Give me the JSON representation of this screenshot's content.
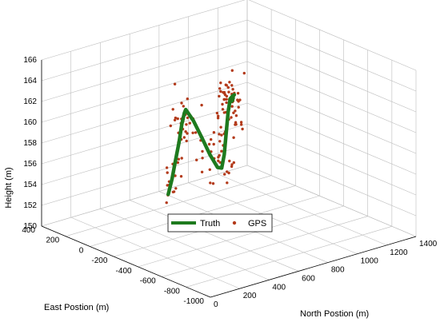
{
  "chart_data": {
    "type": "line3d",
    "title": "",
    "xlabel": "East Postion  (m)",
    "ylabel": "North Postion  (m)",
    "zlabel": "Height (m)",
    "xlim": [
      -1000,
      400
    ],
    "ylim": [
      0,
      1400
    ],
    "zlim": [
      150,
      166
    ],
    "xticks": [
      400,
      200,
      0,
      -200,
      -400,
      -600,
      -800,
      -1000
    ],
    "yticks": [
      0,
      200,
      400,
      600,
      800,
      1000,
      1200,
      1400
    ],
    "zticks": [
      150,
      152,
      154,
      156,
      158,
      160,
      162,
      164,
      166
    ],
    "grid": true,
    "legend": {
      "placement": "bottom-center",
      "entries": [
        "Truth",
        "GPS"
      ]
    },
    "series": [
      {
        "name": "Truth",
        "color": "#1e7a1e",
        "style": "thick-line",
        "points": [
          [
            -650,
            0,
            158.2
          ],
          [
            -560,
            100,
            158.8
          ],
          [
            -460,
            205,
            159.6
          ],
          [
            -350,
            320,
            160.4
          ],
          [
            -240,
            430,
            161.2
          ],
          [
            -175,
            500,
            161.6
          ],
          [
            -150,
            530,
            161.7
          ],
          [
            -170,
            565,
            160.6
          ],
          [
            -200,
            600,
            158.9
          ],
          [
            -230,
            630,
            157.3
          ],
          [
            -255,
            660,
            156.1
          ],
          [
            -265,
            680,
            156.0
          ],
          [
            -262,
            700,
            157.2
          ],
          [
            -255,
            720,
            159.3
          ],
          [
            -245,
            740,
            161.0
          ],
          [
            -238,
            760,
            162.2
          ],
          [
            -236,
            780,
            162.4
          ],
          [
            -190,
            820,
            161.8
          ],
          [
            -110,
            880,
            160.9
          ],
          [
            -30,
            940,
            160.2
          ],
          [
            60,
            1010,
            159.6
          ],
          [
            160,
            1090,
            158.9
          ],
          [
            250,
            1180,
            158.3
          ],
          [
            300,
            1230,
            158.0
          ]
        ]
      },
      {
        "name": "GPS",
        "color": "#b33a1a",
        "style": "markers"
      }
    ]
  }
}
